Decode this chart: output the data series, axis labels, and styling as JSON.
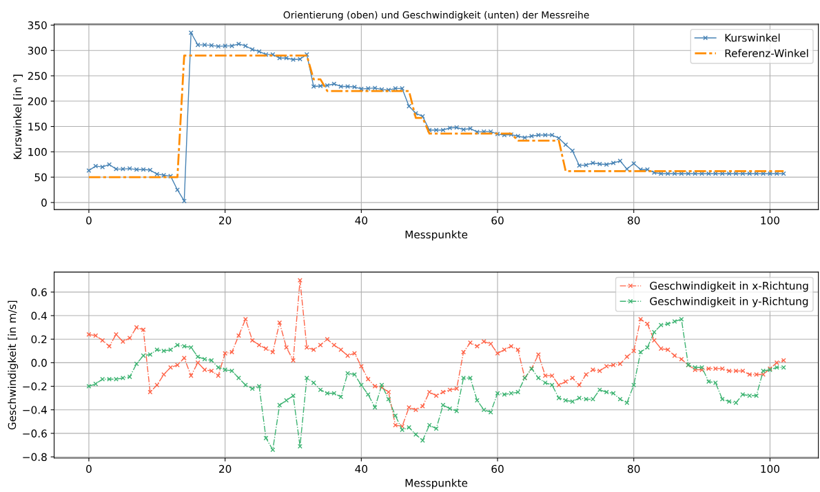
{
  "chart_data": [
    {
      "type": "line",
      "title": "Orientierung (oben) und Geschwindigkeit (unten) der Messreihe",
      "xlabel": "Messpunkte",
      "ylabel": "Kurswinkel [in °]",
      "x": [
        0,
        1,
        2,
        3,
        4,
        5,
        6,
        7,
        8,
        9,
        10,
        11,
        12,
        13,
        14,
        15,
        16,
        17,
        18,
        19,
        20,
        21,
        22,
        23,
        24,
        25,
        26,
        27,
        28,
        29,
        30,
        31,
        32,
        33,
        34,
        35,
        36,
        37,
        38,
        39,
        40,
        41,
        42,
        43,
        44,
        45,
        46,
        47,
        48,
        49,
        50,
        51,
        52,
        53,
        54,
        55,
        56,
        57,
        58,
        59,
        60,
        61,
        62,
        63,
        64,
        65,
        66,
        67,
        68,
        69,
        70,
        71,
        72,
        73,
        74,
        75,
        76,
        77,
        78,
        79,
        80,
        81,
        82,
        83,
        84,
        85,
        86,
        87,
        88,
        89,
        90,
        91,
        92,
        93,
        94,
        95,
        96,
        97,
        98,
        99,
        100,
        101,
        102
      ],
      "series": [
        {
          "name": "Kurswinkel",
          "color": "#4682b4",
          "marker": "cross",
          "line_style": "solid",
          "values": [
            63,
            72,
            70,
            75,
            66,
            66,
            67,
            65,
            65,
            64,
            56,
            54,
            52,
            25,
            3,
            335,
            311,
            311,
            310,
            308,
            309,
            309,
            313,
            309,
            302,
            298,
            292,
            292,
            285,
            285,
            282,
            283,
            292,
            229,
            230,
            231,
            234,
            229,
            229,
            228,
            224,
            225,
            226,
            223,
            222,
            225,
            225,
            190,
            176,
            170,
            143,
            143,
            143,
            147,
            148,
            144,
            146,
            139,
            140,
            140,
            135,
            133,
            134,
            131,
            128,
            131,
            133,
            133,
            133,
            127,
            114,
            102,
            73,
            74,
            78,
            76,
            75,
            78,
            82,
            66,
            77,
            65,
            65,
            59,
            57,
            57,
            57,
            57,
            57,
            57,
            57,
            57,
            57,
            57,
            57,
            57,
            57,
            57,
            57,
            57,
            57,
            57,
            57
          ]
        },
        {
          "name": "Referenz-Winkel",
          "color": "#ff8c00",
          "marker": "none",
          "line_style": "dashdot",
          "values": [
            50,
            50,
            50,
            50,
            50,
            50,
            50,
            50,
            50,
            50,
            50,
            50,
            50,
            50,
            290,
            290,
            290,
            290,
            290,
            290,
            290,
            290,
            290,
            290,
            290,
            290,
            290,
            290,
            290,
            290,
            290,
            290,
            290,
            243,
            243,
            220,
            220,
            220,
            220,
            220,
            220,
            220,
            220,
            220,
            220,
            220,
            220,
            220,
            167,
            167,
            136,
            136,
            136,
            136,
            136,
            136,
            136,
            136,
            136,
            136,
            136,
            136,
            136,
            122,
            122,
            122,
            122,
            122,
            122,
            122,
            62,
            62,
            62,
            62,
            62,
            62,
            62,
            62,
            62,
            62,
            62,
            62,
            62,
            62,
            62,
            62,
            62,
            62,
            62,
            62,
            62,
            62,
            62,
            62,
            62,
            62,
            62,
            62,
            62,
            62,
            62,
            62,
            62
          ]
        }
      ],
      "xlim": [
        -5.1,
        107.1
      ],
      "xticks": [
        0,
        20,
        40,
        60,
        80,
        100
      ],
      "ylim": [
        -14,
        352
      ],
      "yticks": [
        0,
        50,
        100,
        150,
        200,
        250,
        300,
        350
      ],
      "grid": true,
      "legend": "top right"
    },
    {
      "type": "line",
      "xlabel": "Messpunkte",
      "ylabel": "Geschwindigkeit [in m/s]",
      "x": [
        0,
        1,
        2,
        3,
        4,
        5,
        6,
        7,
        8,
        9,
        10,
        11,
        12,
        13,
        14,
        15,
        16,
        17,
        18,
        19,
        20,
        21,
        22,
        23,
        24,
        25,
        26,
        27,
        28,
        29,
        30,
        31,
        32,
        33,
        34,
        35,
        36,
        37,
        38,
        39,
        40,
        41,
        42,
        43,
        44,
        45,
        46,
        47,
        48,
        49,
        50,
        51,
        52,
        53,
        54,
        55,
        56,
        57,
        58,
        59,
        60,
        61,
        62,
        63,
        64,
        65,
        66,
        67,
        68,
        69,
        70,
        71,
        72,
        73,
        74,
        75,
        76,
        77,
        78,
        79,
        80,
        81,
        82,
        83,
        84,
        85,
        86,
        87,
        88,
        89,
        90,
        91,
        92,
        93,
        94,
        95,
        96,
        97,
        98,
        99,
        100,
        101,
        102
      ],
      "series": [
        {
          "name": "Geschwindigkeit in x-Richtung",
          "color": "#ff6347",
          "marker": "cross",
          "line_style": "dashdot",
          "values": [
            0.24,
            0.23,
            0.19,
            0.14,
            0.24,
            0.18,
            0.21,
            0.3,
            0.28,
            -0.25,
            -0.19,
            -0.1,
            -0.04,
            -0.02,
            0.04,
            -0.11,
            0.0,
            -0.06,
            -0.07,
            -0.11,
            0.08,
            0.09,
            0.23,
            0.37,
            0.19,
            0.15,
            0.12,
            0.09,
            0.34,
            0.13,
            0.02,
            0.7,
            0.13,
            0.11,
            0.15,
            0.2,
            0.15,
            0.11,
            0.06,
            0.08,
            -0.03,
            -0.14,
            -0.2,
            -0.21,
            -0.25,
            -0.53,
            -0.54,
            -0.38,
            -0.4,
            -0.37,
            -0.25,
            -0.28,
            -0.25,
            -0.23,
            -0.22,
            0.09,
            0.17,
            0.14,
            0.18,
            0.16,
            0.08,
            0.11,
            0.14,
            0.11,
            -0.13,
            -0.05,
            0.07,
            -0.11,
            -0.11,
            -0.19,
            -0.16,
            -0.13,
            -0.19,
            -0.1,
            -0.06,
            -0.07,
            -0.03,
            -0.02,
            -0.01,
            0.05,
            0.1,
            0.37,
            0.33,
            0.19,
            0.12,
            0.11,
            0.06,
            0.03,
            -0.02,
            -0.06,
            -0.06,
            -0.05,
            -0.05,
            -0.05,
            -0.07,
            -0.07,
            -0.07,
            -0.1,
            -0.1,
            -0.1,
            -0.05,
            0.0,
            0.02
          ]
        },
        {
          "name": "Geschwindigkeit in y-Richtung",
          "color": "#3cb371",
          "marker": "cross",
          "line_style": "dashdot",
          "values": [
            -0.2,
            -0.18,
            -0.14,
            -0.14,
            -0.14,
            -0.13,
            -0.12,
            -0.01,
            0.06,
            0.07,
            0.11,
            0.1,
            0.11,
            0.15,
            0.14,
            0.13,
            0.05,
            0.03,
            0.02,
            -0.04,
            -0.06,
            -0.07,
            -0.13,
            -0.19,
            -0.22,
            -0.2,
            -0.64,
            -0.74,
            -0.36,
            -0.32,
            -0.28,
            -0.71,
            -0.13,
            -0.17,
            -0.23,
            -0.26,
            -0.26,
            -0.29,
            -0.09,
            -0.1,
            -0.19,
            -0.27,
            -0.38,
            -0.19,
            -0.31,
            -0.45,
            -0.57,
            -0.55,
            -0.61,
            -0.66,
            -0.53,
            -0.56,
            -0.36,
            -0.39,
            -0.41,
            -0.13,
            -0.13,
            -0.32,
            -0.4,
            -0.42,
            -0.26,
            -0.27,
            -0.26,
            -0.25,
            -0.13,
            -0.05,
            -0.13,
            -0.17,
            -0.19,
            -0.3,
            -0.32,
            -0.33,
            -0.3,
            -0.31,
            -0.31,
            -0.23,
            -0.25,
            -0.26,
            -0.31,
            -0.34,
            -0.19,
            0.09,
            0.13,
            0.26,
            0.32,
            0.33,
            0.35,
            0.37,
            -0.02,
            -0.04,
            -0.04,
            -0.16,
            -0.17,
            -0.31,
            -0.33,
            -0.34,
            -0.27,
            -0.28,
            -0.28,
            -0.07,
            -0.06,
            -0.04,
            -0.04
          ]
        }
      ],
      "xlim": [
        -5.1,
        107.1
      ],
      "xticks": [
        0,
        20,
        40,
        60,
        80,
        100
      ],
      "ylim": [
        -0.81,
        0.77
      ],
      "yticks": [
        {
          "value": -0.8,
          "label": "−0.8"
        },
        {
          "value": -0.6,
          "label": "−0.6"
        },
        {
          "value": -0.4,
          "label": "−0.4"
        },
        {
          "value": -0.2,
          "label": "−0.2"
        },
        {
          "value": 0.0,
          "label": "0.0"
        },
        {
          "value": 0.2,
          "label": "0.2"
        },
        {
          "value": 0.4,
          "label": "0.4"
        },
        {
          "value": 0.6,
          "label": "0.6"
        }
      ],
      "grid": true,
      "legend": "top right"
    }
  ]
}
